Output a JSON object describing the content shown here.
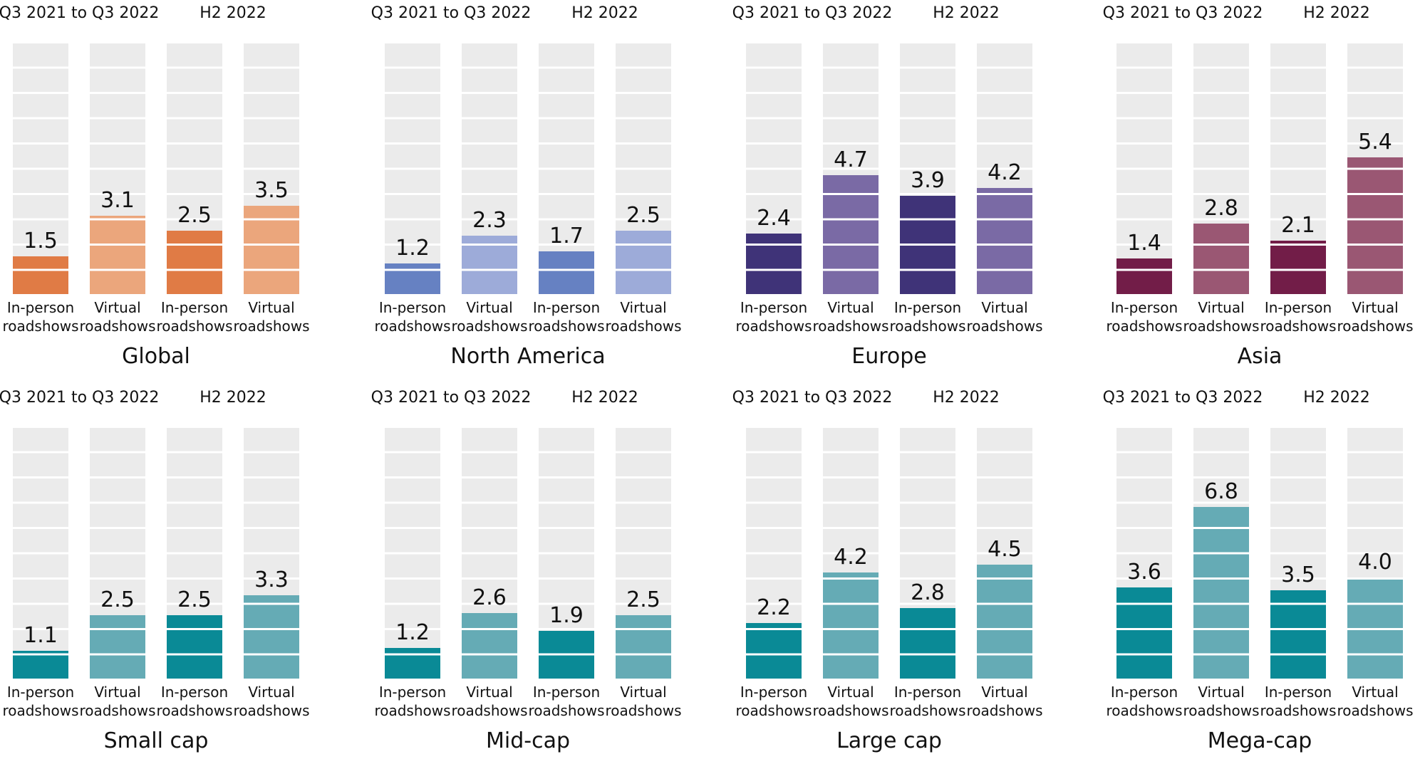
{
  "chart_data": [
    {
      "type": "bar",
      "title": "Global",
      "period_labels": [
        "Q3 2021 to Q3 2022",
        "H2 2022"
      ],
      "categories": [
        "In-person roadshows",
        "Virtual roadshows",
        "In-person roadshows",
        "Virtual roadshows"
      ],
      "values": [
        1.5,
        3.1,
        2.5,
        3.5
      ],
      "colors": [
        "#e07b45",
        "#eba67c",
        "#e07b45",
        "#eba67c"
      ],
      "ylim": [
        0,
        10
      ]
    },
    {
      "type": "bar",
      "title": "North America",
      "period_labels": [
        "Q3 2021 to Q3 2022",
        "H2 2022"
      ],
      "categories": [
        "In-person roadshows",
        "Virtual roadshows",
        "In-person roadshows",
        "Virtual roadshows"
      ],
      "values": [
        1.2,
        2.3,
        1.7,
        2.5
      ],
      "colors": [
        "#6681c2",
        "#9dabd9",
        "#6681c2",
        "#9dabd9"
      ],
      "ylim": [
        0,
        10
      ]
    },
    {
      "type": "bar",
      "title": "Europe",
      "period_labels": [
        "Q3 2021 to Q3 2022",
        "H2 2022"
      ],
      "categories": [
        "In-person roadshows",
        "Virtual roadshows",
        "In-person roadshows",
        "Virtual roadshows"
      ],
      "values": [
        2.4,
        4.7,
        3.9,
        4.2
      ],
      "colors": [
        "#3f3378",
        "#7a6aa5",
        "#3f3378",
        "#7a6aa5"
      ],
      "ylim": [
        0,
        10
      ]
    },
    {
      "type": "bar",
      "title": "Asia",
      "period_labels": [
        "Q3 2021 to Q3 2022",
        "H2 2022"
      ],
      "categories": [
        "In-person roadshows",
        "Virtual roadshows",
        "In-person roadshows",
        "Virtual roadshows"
      ],
      "values": [
        1.4,
        2.8,
        2.1,
        5.4
      ],
      "colors": [
        "#721d48",
        "#9a5773",
        "#721d48",
        "#9a5773"
      ],
      "ylim": [
        0,
        10
      ]
    },
    {
      "type": "bar",
      "title": "Small cap",
      "period_labels": [
        "Q3 2021 to Q3 2022",
        "H2 2022"
      ],
      "categories": [
        "In-person roadshows",
        "Virtual roadshows",
        "In-person roadshows",
        "Virtual roadshows"
      ],
      "values": [
        1.1,
        2.5,
        2.5,
        3.3
      ],
      "colors": [
        "#0a8a96",
        "#65abb5",
        "#0a8a96",
        "#65abb5"
      ],
      "ylim": [
        0,
        10
      ]
    },
    {
      "type": "bar",
      "title": "Mid-cap",
      "period_labels": [
        "Q3 2021 to Q3 2022",
        "H2 2022"
      ],
      "categories": [
        "In-person roadshows",
        "Virtual roadshows",
        "In-person roadshows",
        "Virtual roadshows"
      ],
      "values": [
        1.2,
        2.6,
        1.9,
        2.5
      ],
      "colors": [
        "#0a8a96",
        "#65abb5",
        "#0a8a96",
        "#65abb5"
      ],
      "ylim": [
        0,
        10
      ]
    },
    {
      "type": "bar",
      "title": "Large cap",
      "period_labels": [
        "Q3 2021 to Q3 2022",
        "H2 2022"
      ],
      "categories": [
        "In-person roadshows",
        "Virtual roadshows",
        "In-person roadshows",
        "Virtual roadshows"
      ],
      "values": [
        2.2,
        4.2,
        2.8,
        4.5
      ],
      "colors": [
        "#0a8a96",
        "#65abb5",
        "#0a8a96",
        "#65abb5"
      ],
      "ylim": [
        0,
        10
      ]
    },
    {
      "type": "bar",
      "title": "Mega-cap",
      "period_labels": [
        "Q3 2021 to Q3 2022",
        "H2 2022"
      ],
      "categories": [
        "In-person roadshows",
        "Virtual roadshows",
        "In-person roadshows",
        "Virtual roadshows"
      ],
      "values": [
        3.6,
        6.8,
        3.5,
        4.0
      ],
      "colors": [
        "#0a8a96",
        "#65abb5",
        "#0a8a96",
        "#65abb5"
      ],
      "ylim": [
        0,
        10
      ]
    }
  ],
  "track_color": "#ebebeb"
}
